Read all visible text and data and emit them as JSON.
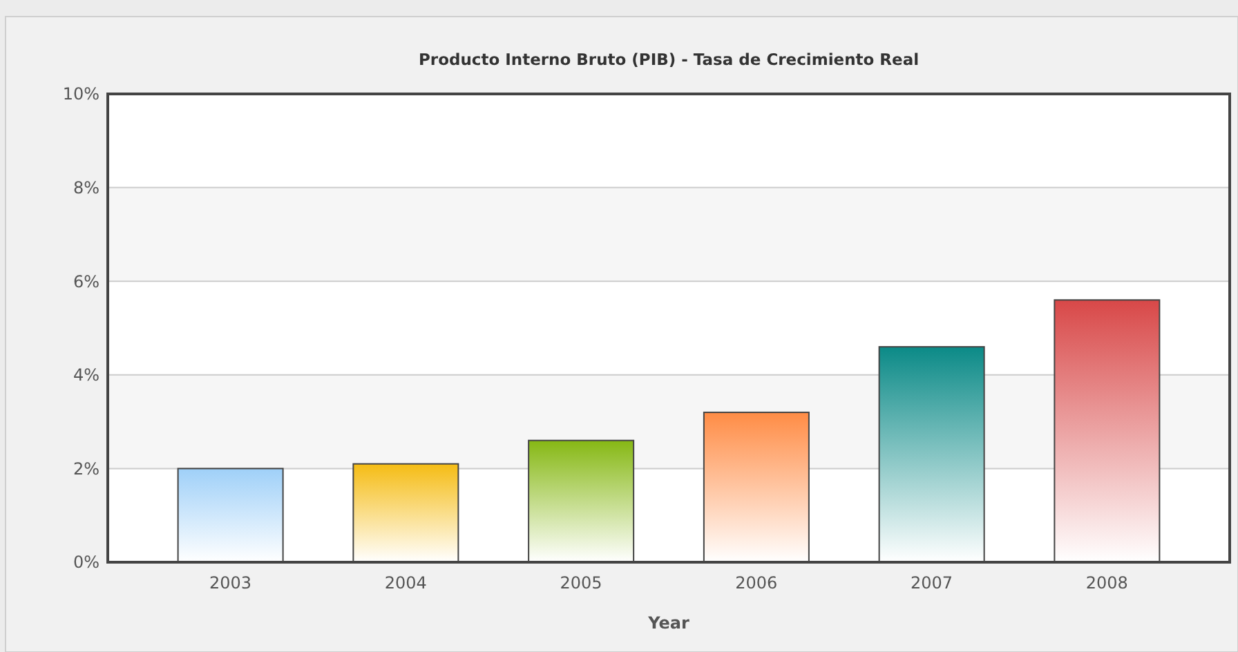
{
  "chart_data": {
    "type": "bar",
    "title": "Producto Interno Bruto (PIB) - Tasa de Crecimiento Real",
    "xlabel": "Year",
    "categories": [
      "2003",
      "2004",
      "2005",
      "2006",
      "2007",
      "2008"
    ],
    "values": [
      2.0,
      2.1,
      2.6,
      3.2,
      4.6,
      5.6
    ],
    "colors": [
      "#9fd0f8",
      "#f5bc14",
      "#86b814",
      "#ff8c45",
      "#0b8a87",
      "#d84848"
    ],
    "ylim": [
      0,
      10
    ],
    "yticks": [
      {
        "value": 0,
        "label": "0%"
      },
      {
        "value": 2,
        "label": "2%"
      },
      {
        "value": 4,
        "label": "4%"
      },
      {
        "value": 6,
        "label": "6%"
      },
      {
        "value": 8,
        "label": "8%"
      },
      {
        "value": 10,
        "label": "10%"
      }
    ],
    "grid": "y"
  }
}
